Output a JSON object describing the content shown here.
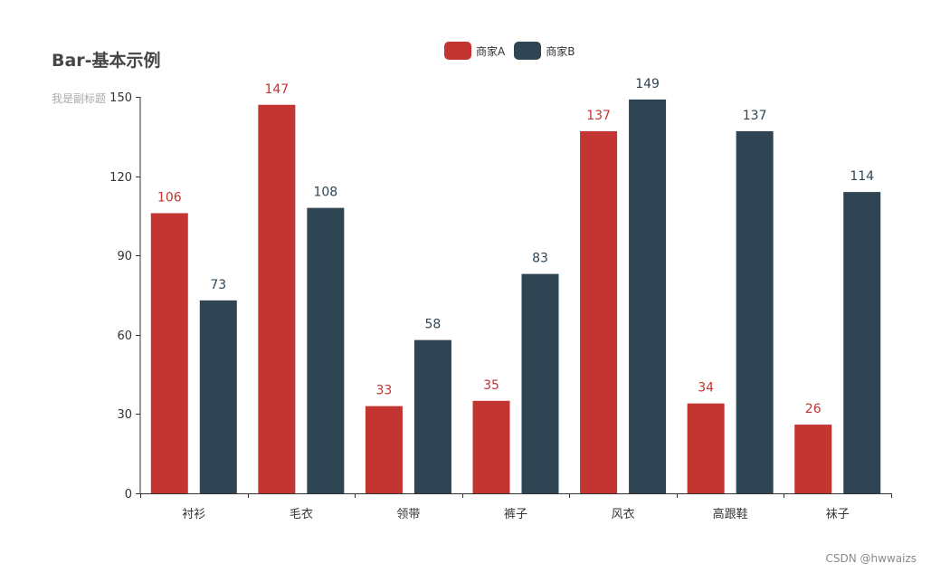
{
  "title": "Bar-基本示例",
  "subtitle": "我是副标题",
  "watermark": "CSDN @hwwaizs",
  "colors": {
    "series_a": "#c23531",
    "series_b": "#2f4554",
    "axis": "#333333",
    "title": "#464646",
    "subtitle": "#aaaaaa"
  },
  "legend": [
    {
      "label": "商家A",
      "color": "#c23531"
    },
    {
      "label": "商家B",
      "color": "#2f4554"
    }
  ],
  "chart_data": {
    "type": "bar",
    "title": "Bar-基本示例",
    "subtitle": "我是副标题",
    "categories": [
      "衬衫",
      "毛衣",
      "领带",
      "裤子",
      "风衣",
      "高跟鞋",
      "袜子"
    ],
    "series": [
      {
        "name": "商家A",
        "color": "#c23531",
        "values": [
          106,
          147,
          33,
          35,
          137,
          34,
          26
        ]
      },
      {
        "name": "商家B",
        "color": "#2f4554",
        "values": [
          73,
          108,
          58,
          83,
          149,
          137,
          114
        ]
      }
    ],
    "ylim": [
      0,
      150
    ],
    "yticks": [
      0,
      30,
      60,
      90,
      120,
      150
    ],
    "grid": false,
    "legend_position": "top-center",
    "data_labels": true
  }
}
